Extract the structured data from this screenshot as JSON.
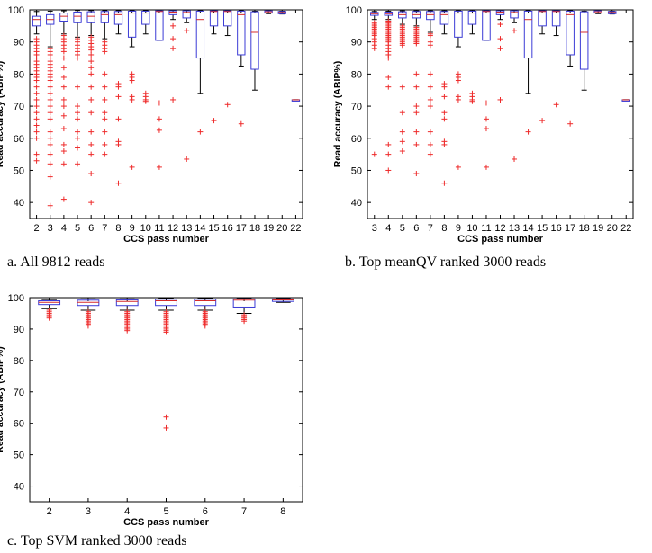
{
  "colors": {
    "box": "#3b3bd6",
    "median": "#d62a2a",
    "outlier": "#ee2b2b",
    "whisker": "#000000",
    "axis": "#000000"
  },
  "captions": {
    "a": "a.   All 9812 reads",
    "b": "b. Top meanQV ranked 3000 reads",
    "c": "c.   Top SVM ranked 3000 reads"
  },
  "chart_data": [
    {
      "type": "boxplot",
      "xlabel": "CCS pass number",
      "ylabel": "Read accuracy (ABIP%)",
      "ylim": [
        35,
        100
      ],
      "yticks": [
        40,
        50,
        60,
        70,
        80,
        90,
        100
      ],
      "grid": false,
      "categories": [
        "2",
        "3",
        "4",
        "5",
        "6",
        "7",
        "8",
        "9",
        "10",
        "11",
        "12",
        "13",
        "14",
        "15",
        "16",
        "17",
        "18",
        "19",
        "20",
        "22"
      ],
      "boxes": [
        {
          "q1": 95,
          "median": 97,
          "q3": 98,
          "wlo": 92.5,
          "whi": 99.5,
          "outliers": [
            91,
            90,
            89,
            88,
            87,
            86,
            85,
            84,
            83,
            82,
            81,
            80,
            79,
            78,
            76,
            74,
            72,
            70,
            68,
            66,
            64,
            62,
            60,
            55,
            53
          ]
        },
        {
          "q1": 95.5,
          "median": 97,
          "q3": 98.5,
          "wlo": 88.5,
          "whi": 99.6,
          "outliers": [
            88,
            87,
            86,
            85,
            84,
            83,
            82,
            81,
            80,
            79,
            78,
            76,
            74,
            72,
            70,
            68,
            66,
            62,
            60,
            58,
            55,
            52,
            48,
            39
          ]
        },
        {
          "q1": 96.5,
          "median": 98,
          "q3": 99,
          "wlo": 92.5,
          "whi": 99.7,
          "outliers": [
            92,
            91,
            90,
            89,
            88,
            87,
            85,
            82,
            79,
            76,
            72,
            70,
            67,
            63,
            58,
            56,
            52,
            41
          ]
        },
        {
          "q1": 96,
          "median": 98,
          "q3": 99.3,
          "wlo": 91.5,
          "whi": 99.8,
          "outliers": [
            91,
            90,
            89,
            88,
            87,
            86,
            85,
            76,
            70,
            68,
            66,
            62,
            60,
            57,
            52
          ]
        },
        {
          "q1": 96,
          "median": 98,
          "q3": 99.4,
          "wlo": 92,
          "whi": 99.8,
          "outliers": [
            91.5,
            90.5,
            89.5,
            88.5,
            87.5,
            86,
            84,
            82,
            80,
            76,
            72,
            68,
            62,
            58,
            55,
            49,
            40
          ]
        },
        {
          "q1": 96,
          "median": 98.5,
          "q3": 99.5,
          "wlo": 91,
          "whi": 99.8,
          "outliers": [
            90,
            89,
            88,
            87,
            80,
            76,
            72,
            68,
            66,
            62,
            58,
            55
          ]
        },
        {
          "q1": 95.5,
          "median": 98.5,
          "q3": 99.5,
          "wlo": 92.5,
          "whi": 99.8,
          "outliers": [
            77,
            76,
            73,
            66,
            59,
            58,
            46
          ]
        },
        {
          "q1": 91.5,
          "median": 99,
          "q3": 99.6,
          "wlo": 88.5,
          "whi": 99.8,
          "outliers": [
            80,
            79,
            78,
            73,
            72,
            51
          ]
        },
        {
          "q1": 95.5,
          "median": 99,
          "q3": 99.6,
          "wlo": 92.5,
          "whi": 99.8,
          "outliers": [
            74,
            73,
            71.5,
            72
          ]
        },
        {
          "q1": 90.5,
          "median": 99.5,
          "q3": 99.7,
          "wlo": 90.5,
          "whi": 99.8,
          "outliers": [
            71,
            66,
            62.5,
            51
          ]
        },
        {
          "q1": 98.5,
          "median": 99.3,
          "q3": 99.7,
          "wlo": 97,
          "whi": 99.8,
          "outliers": [
            95,
            91,
            88,
            72
          ]
        },
        {
          "q1": 97.5,
          "median": 99.2,
          "q3": 99.7,
          "wlo": 96,
          "whi": 99.8,
          "outliers": [
            93.5,
            53.5
          ]
        },
        {
          "q1": 85,
          "median": 97,
          "q3": 99.6,
          "wlo": 74,
          "whi": 99.8,
          "outliers": [
            62
          ]
        },
        {
          "q1": 95,
          "median": 99.5,
          "q3": 99.7,
          "wlo": 92.5,
          "whi": 99.8,
          "outliers": [
            65.5
          ]
        },
        {
          "q1": 95,
          "median": 99.5,
          "q3": 99.7,
          "wlo": 92,
          "whi": 99.8,
          "outliers": [
            70.5
          ]
        },
        {
          "q1": 86,
          "median": 98.5,
          "q3": 99.6,
          "wlo": 82.5,
          "whi": 99.8,
          "outliers": [
            64.5
          ]
        },
        {
          "q1": 81.5,
          "median": 93,
          "q3": 99.4,
          "wlo": 75,
          "whi": 99.6,
          "outliers": []
        },
        {
          "q1": 99,
          "median": 99.4,
          "q3": 99.7,
          "wlo": 98.8,
          "whi": 99.8,
          "outliers": []
        },
        {
          "q1": 98.8,
          "median": 99.2,
          "q3": 99.5,
          "wlo": 98.7,
          "whi": 99.6,
          "outliers": []
        },
        {
          "q1": 72,
          "median": 72,
          "q3": 72,
          "wlo": 72,
          "whi": 72,
          "outliers": []
        }
      ]
    },
    {
      "type": "boxplot",
      "xlabel": "CCS pass number",
      "ylabel": "Read accuracy (ABIP%)",
      "ylim": [
        35,
        100
      ],
      "yticks": [
        40,
        50,
        60,
        70,
        80,
        90,
        100
      ],
      "grid": false,
      "categories": [
        "3",
        "4",
        "5",
        "6",
        "7",
        "8",
        "9",
        "10",
        "11",
        "12",
        "13",
        "14",
        "15",
        "16",
        "17",
        "18",
        "19",
        "20",
        "22"
      ],
      "boxes": [
        {
          "q1": 98.3,
          "median": 98.8,
          "q3": 99.2,
          "wlo": 97,
          "whi": 99.5,
          "outliers": [
            96,
            95.5,
            95,
            94.5,
            94,
            93.5,
            93,
            92.5,
            92,
            91,
            90,
            89,
            88,
            55
          ]
        },
        {
          "q1": 98.3,
          "median": 98.8,
          "q3": 99.3,
          "wlo": 97,
          "whi": 99.6,
          "outliers": [
            96.5,
            96,
            95.5,
            95,
            94.5,
            94,
            93.5,
            93,
            92.5,
            92,
            91.5,
            91,
            90.5,
            90,
            89,
            88,
            87,
            86,
            85,
            79,
            76,
            58,
            55,
            50
          ]
        },
        {
          "q1": 97.5,
          "median": 98.5,
          "q3": 99.4,
          "wlo": 95.5,
          "whi": 99.7,
          "outliers": [
            95,
            94.5,
            94,
            93.5,
            93,
            92.5,
            92,
            91.5,
            91,
            90.5,
            90,
            89.5,
            89,
            76,
            68,
            62,
            59,
            56
          ]
        },
        {
          "q1": 97.5,
          "median": 98.5,
          "q3": 99.5,
          "wlo": 95,
          "whi": 99.7,
          "outliers": [
            94.5,
            94,
            93.5,
            93,
            92.5,
            92,
            91.5,
            91,
            90.5,
            90,
            89.5,
            80,
            76,
            70,
            68,
            62,
            58,
            49
          ]
        },
        {
          "q1": 97,
          "median": 98.5,
          "q3": 99.5,
          "wlo": 93,
          "whi": 99.7,
          "outliers": [
            92.5,
            92,
            90,
            89,
            80,
            76,
            72,
            70,
            62,
            58,
            55
          ]
        },
        {
          "q1": 95.5,
          "median": 98.5,
          "q3": 99.5,
          "wlo": 92.5,
          "whi": 99.7,
          "outliers": [
            77,
            76,
            73,
            68,
            66,
            59,
            58,
            46
          ]
        },
        {
          "q1": 91.5,
          "median": 99,
          "q3": 99.6,
          "wlo": 88.5,
          "whi": 99.7,
          "outliers": [
            80,
            79,
            78,
            73,
            72,
            51
          ]
        },
        {
          "q1": 95.5,
          "median": 99,
          "q3": 99.6,
          "wlo": 92.5,
          "whi": 99.7,
          "outliers": [
            74,
            73,
            72,
            71.5
          ]
        },
        {
          "q1": 90.5,
          "median": 99.5,
          "q3": 99.7,
          "wlo": 90.5,
          "whi": 99.8,
          "outliers": [
            71,
            66,
            63,
            51
          ]
        },
        {
          "q1": 98.5,
          "median": 99.3,
          "q3": 99.7,
          "wlo": 97,
          "whi": 99.8,
          "outliers": [
            95.5,
            91,
            88,
            72
          ]
        },
        {
          "q1": 97.5,
          "median": 99.2,
          "q3": 99.7,
          "wlo": 96,
          "whi": 99.8,
          "outliers": [
            93.5,
            53.5
          ]
        },
        {
          "q1": 85,
          "median": 97,
          "q3": 99.6,
          "wlo": 74,
          "whi": 99.8,
          "outliers": [
            62
          ]
        },
        {
          "q1": 95,
          "median": 99.5,
          "q3": 99.7,
          "wlo": 92.5,
          "whi": 99.8,
          "outliers": [
            65.5
          ]
        },
        {
          "q1": 95,
          "median": 99.5,
          "q3": 99.7,
          "wlo": 92,
          "whi": 99.8,
          "outliers": [
            70.5
          ]
        },
        {
          "q1": 86,
          "median": 98.5,
          "q3": 99.6,
          "wlo": 82.5,
          "whi": 99.8,
          "outliers": [
            64.5
          ]
        },
        {
          "q1": 81.5,
          "median": 93,
          "q3": 99.4,
          "wlo": 75,
          "whi": 99.6,
          "outliers": []
        },
        {
          "q1": 99,
          "median": 99.4,
          "q3": 99.7,
          "wlo": 98.8,
          "whi": 99.8,
          "outliers": []
        },
        {
          "q1": 98.8,
          "median": 99.2,
          "q3": 99.5,
          "wlo": 98.7,
          "whi": 99.6,
          "outliers": []
        },
        {
          "q1": 72,
          "median": 72,
          "q3": 72,
          "wlo": 72,
          "whi": 72,
          "outliers": []
        }
      ]
    },
    {
      "type": "boxplot",
      "xlabel": "CCS pass number",
      "ylabel": "Read accuracy (ABIP%)",
      "ylim": [
        35,
        100
      ],
      "yticks": [
        40,
        50,
        60,
        70,
        80,
        90,
        100
      ],
      "grid": false,
      "categories": [
        "2",
        "3",
        "4",
        "5",
        "6",
        "7",
        "8"
      ],
      "boxes": [
        {
          "q1": 97.8,
          "median": 98.5,
          "q3": 99,
          "wlo": 96.5,
          "whi": 99.4,
          "outliers": [
            96,
            95.5,
            95,
            94.5,
            94,
            93.5
          ]
        },
        {
          "q1": 97.5,
          "median": 98.5,
          "q3": 99.2,
          "wlo": 96,
          "whi": 99.6,
          "outliers": [
            95.5,
            95,
            94.5,
            94,
            93.5,
            93,
            92.5,
            92,
            91.5,
            91
          ]
        },
        {
          "q1": 97.5,
          "median": 98.8,
          "q3": 99.3,
          "wlo": 96,
          "whi": 99.6,
          "outliers": [
            95.5,
            95,
            94.5,
            94,
            93.5,
            93,
            92.5,
            92,
            91.5,
            91,
            90.5,
            90,
            89.5
          ]
        },
        {
          "q1": 97.5,
          "median": 99,
          "q3": 99.5,
          "wlo": 96,
          "whi": 99.7,
          "outliers": [
            95.5,
            95,
            94.5,
            94,
            93.5,
            93,
            92.5,
            92,
            91.5,
            91,
            90.5,
            90,
            89.5,
            89,
            62,
            58.5
          ]
        },
        {
          "q1": 97.5,
          "median": 99,
          "q3": 99.5,
          "wlo": 96,
          "whi": 99.7,
          "outliers": [
            95.5,
            95,
            94.5,
            94,
            93.5,
            93,
            92.5,
            92,
            91.5,
            91
          ]
        },
        {
          "q1": 97,
          "median": 99.2,
          "q3": 99.6,
          "wlo": 95,
          "whi": 99.8,
          "outliers": [
            94.5,
            94,
            93.5,
            93,
            92.5
          ]
        },
        {
          "q1": 98.8,
          "median": 99.3,
          "q3": 99.6,
          "wlo": 98.5,
          "whi": 99.8,
          "outliers": []
        }
      ]
    }
  ]
}
